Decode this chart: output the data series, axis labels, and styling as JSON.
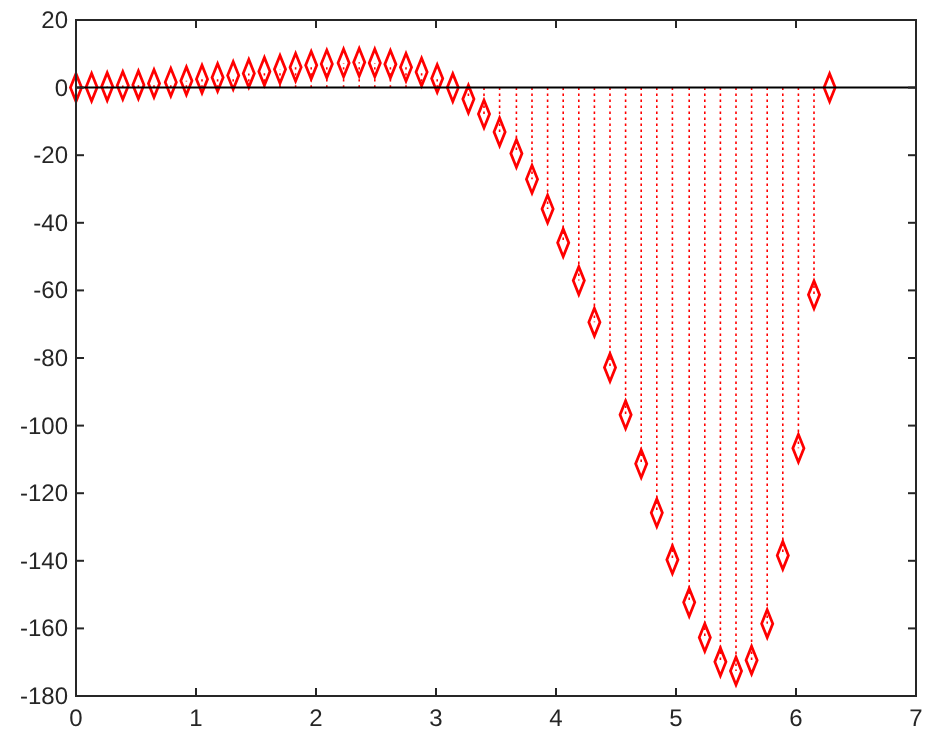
{
  "chart_data": {
    "type": "lollipop",
    "x": [
      0,
      0.13,
      0.26,
      0.39,
      0.52,
      0.65,
      0.79,
      0.92,
      1.05,
      1.18,
      1.31,
      1.44,
      1.57,
      1.7,
      1.83,
      1.96,
      2.09,
      2.23,
      2.36,
      2.49,
      2.62,
      2.75,
      2.88,
      3.01,
      3.14,
      3.27,
      3.4,
      3.53,
      3.67,
      3.8,
      3.93,
      4.06,
      4.19,
      4.32,
      4.45,
      4.58,
      4.71,
      4.84,
      4.97,
      5.11,
      5.24,
      5.37,
      5.5,
      5.63,
      5.76,
      5.89,
      6.02,
      6.15,
      6.28
    ],
    "series": [
      {
        "color": "#ff0000",
        "values": [
          0,
          0.1,
          0.3,
          0.6,
          0.8,
          1.2,
          1.6,
          2.0,
          2.5,
          3.0,
          3.6,
          4.2,
          4.8,
          5.4,
          6.0,
          6.6,
          7.0,
          7.3,
          7.5,
          7.3,
          6.9,
          6.0,
          4.6,
          2.7,
          0,
          -3.4,
          -7.8,
          -13.1,
          -19.5,
          -27.1,
          -35.9,
          -45.9,
          -57.1,
          -69.4,
          -82.8,
          -96.8,
          -111.3,
          -125.8,
          -139.7,
          -152.3,
          -162.7,
          -169.9,
          -172.6,
          -169.4,
          -158.6,
          -138.4,
          -106.7,
          -61.3,
          0
        ]
      }
    ],
    "xlim": [
      0,
      7
    ],
    "xticks": [
      0,
      1,
      2,
      3,
      4,
      5,
      6,
      7
    ],
    "ylim": [
      -180,
      20
    ],
    "yticks": [
      -180,
      -160,
      -140,
      -120,
      -100,
      -80,
      -60,
      -40,
      -20,
      0,
      20
    ],
    "marker": "diamond",
    "line_style": "dotted"
  }
}
